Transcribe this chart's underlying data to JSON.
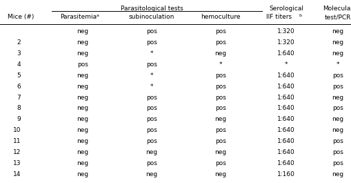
{
  "col_headers_row1": [
    "",
    "Parasitological tests",
    "",
    "",
    "Serological",
    "Molecular"
  ],
  "col_headers_row2": [
    "Mice (#)",
    "Parasitemia",
    "subinoculation",
    "hemoculture",
    "IIF titers",
    "test/PCR"
  ],
  "rows": [
    [
      "",
      "neg",
      "pos",
      "pos",
      "1:320",
      "neg"
    ],
    [
      "2",
      "neg",
      "pos",
      "pos",
      "1:320",
      "neg"
    ],
    [
      "3",
      "neg",
      "*",
      "neg",
      "1:640",
      "neg"
    ],
    [
      "4",
      "pos",
      "pos",
      "*",
      "*",
      "*"
    ],
    [
      "5",
      "neg",
      "*",
      "pos",
      "1:640",
      "pos"
    ],
    [
      "6",
      "neg",
      "*",
      "pos",
      "1:640",
      "pos"
    ],
    [
      "7",
      "neg",
      "pos",
      "pos",
      "1:640",
      "neg"
    ],
    [
      "8",
      "neg",
      "pos",
      "pos",
      "1:640",
      "pos"
    ],
    [
      "9",
      "neg",
      "pos",
      "neg",
      "1:640",
      "neg"
    ],
    [
      "10",
      "neg",
      "pos",
      "pos",
      "1:640",
      "neg"
    ],
    [
      "11",
      "neg",
      "pos",
      "pos",
      "1:640",
      "pos"
    ],
    [
      "12",
      "neg",
      "neg",
      "neg",
      "1:640",
      "pos"
    ],
    [
      "13",
      "neg",
      "pos",
      "pos",
      "1:640",
      "pos"
    ],
    [
      "14",
      "neg",
      "neg",
      "neg",
      "1:160",
      "neg"
    ]
  ],
  "background_color": "#ffffff",
  "font_size": 6.5,
  "header_font_size": 6.5
}
